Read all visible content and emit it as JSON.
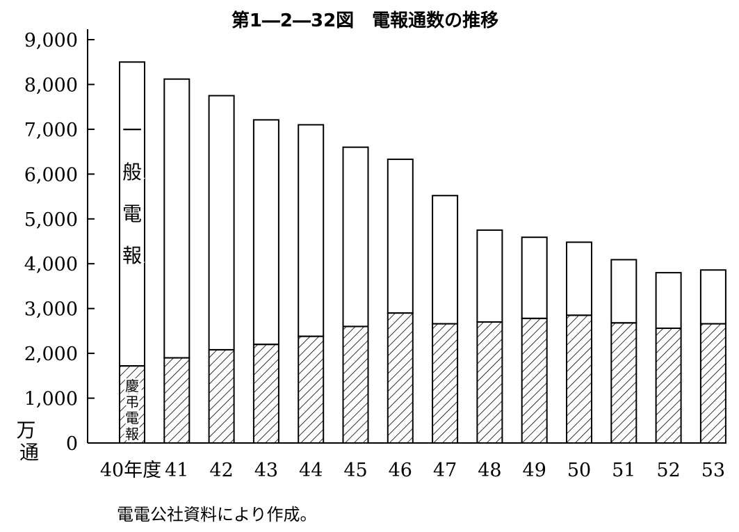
{
  "chart_data": {
    "type": "bar",
    "stacked": true,
    "title": "第1―2―32図　電報通数の推移",
    "categories": [
      "40年度",
      "41",
      "42",
      "43",
      "44",
      "45",
      "46",
      "47",
      "48",
      "49",
      "50",
      "51",
      "52",
      "53"
    ],
    "series": [
      {
        "name": "慶弔電報",
        "pattern": "hatched",
        "values": [
          1720,
          1900,
          2080,
          2200,
          2380,
          2600,
          2900,
          2660,
          2700,
          2780,
          2850,
          2680,
          2560,
          2660
        ]
      },
      {
        "name": "一般電報",
        "pattern": "white",
        "values": [
          6780,
          6220,
          5670,
          5010,
          4720,
          4000,
          3430,
          2860,
          2050,
          1810,
          1630,
          1410,
          1240,
          1200
        ]
      }
    ],
    "ylim": [
      0,
      9000
    ],
    "yticks": [
      "0",
      "1,000",
      "2,000",
      "3,000",
      "4,000",
      "5,000",
      "6,000",
      "7,000",
      "8,000",
      "9,000"
    ],
    "ytick_values": [
      0,
      1000,
      2000,
      3000,
      4000,
      5000,
      6000,
      7000,
      8000,
      9000
    ],
    "ylabel": "万通",
    "legend": "inside-first-bar",
    "grid": false,
    "source_note": "電電公社資料により作成。"
  }
}
